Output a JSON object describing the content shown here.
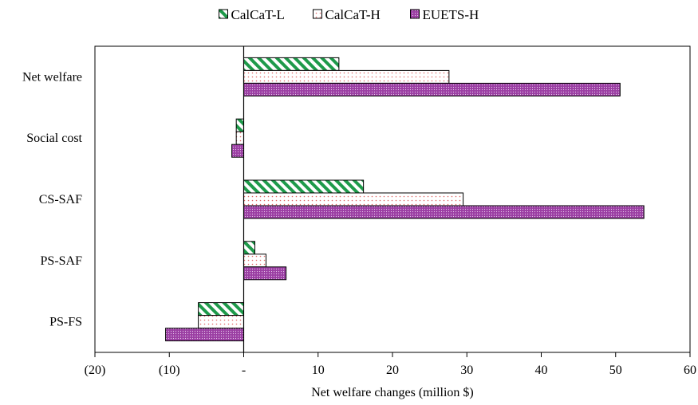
{
  "chart_data": {
    "type": "bar",
    "orientation": "horizontal",
    "categories": [
      "Net welfare",
      "Social cost",
      "CS-SAF",
      "PS-SAF",
      "PS-FS"
    ],
    "series": [
      {
        "name": "CalCaT-L",
        "values": [
          12.8,
          -1.0,
          16.1,
          1.5,
          -6.1
        ],
        "color": "#1e9a4a",
        "pattern": "diagonal-stripes"
      },
      {
        "name": "CalCaT-H",
        "values": [
          27.6,
          -1.0,
          29.5,
          3.0,
          -6.1
        ],
        "color": "#e06a6a",
        "pattern": "sparse-dots"
      },
      {
        "name": "EUETS-H",
        "values": [
          50.6,
          -1.6,
          53.8,
          5.7,
          -10.5
        ],
        "color": "#9b3fa3",
        "pattern": "dense-dots"
      }
    ],
    "xlim": [
      -20,
      60
    ],
    "xticks": [
      -20,
      -10,
      0,
      10,
      20,
      30,
      40,
      50,
      60
    ],
    "xtick_labels": [
      "(20)",
      "(10)",
      "-",
      "10",
      "20",
      "30",
      "40",
      "50",
      "60"
    ],
    "xlabel": "Net welfare changes (million $)",
    "legend_position": "top-center",
    "grid": false
  }
}
